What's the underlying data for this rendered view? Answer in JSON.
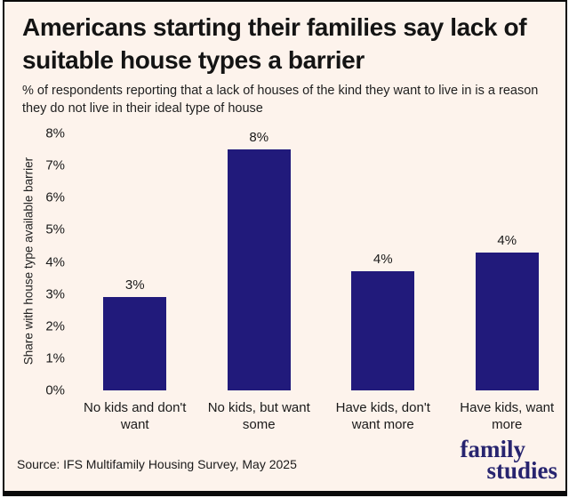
{
  "header": {
    "title": "Americans starting their families say lack of suitable house types a barrier",
    "subtitle": "% of respondents reporting that a lack of houses of the kind they want to live in is a reason they do not live in their ideal type of house"
  },
  "chart_data": {
    "type": "bar",
    "title": "Americans starting their families say lack of suitable house types a barrier",
    "categories": [
      "No kids and don't want",
      "No kids, but want some",
      "Have kids, don't want more",
      "Have kids, want more"
    ],
    "values": [
      2.9,
      7.5,
      3.7,
      4.3
    ],
    "value_labels": [
      "3%",
      "8%",
      "4%",
      "4%"
    ],
    "xlabel": "",
    "ylabel": "Share with house type available barrier",
    "ylim": [
      0,
      8
    ],
    "yticks": [
      "0%",
      "1%",
      "2%",
      "3%",
      "4%",
      "5%",
      "6%",
      "7%",
      "8%"
    ],
    "grid": false,
    "legend": "none",
    "bar_color": "#211a7b"
  },
  "footer": {
    "source": "Source: IFS Multifamily Housing Survey, May 2025",
    "logo_line1": "family",
    "logo_line2": "studies"
  },
  "colors": {
    "background": "#fdf3ec",
    "frame_border": "#0a0a0a",
    "bar": "#211a7b",
    "text": "#1a1a1a",
    "logo": "#27246f"
  }
}
